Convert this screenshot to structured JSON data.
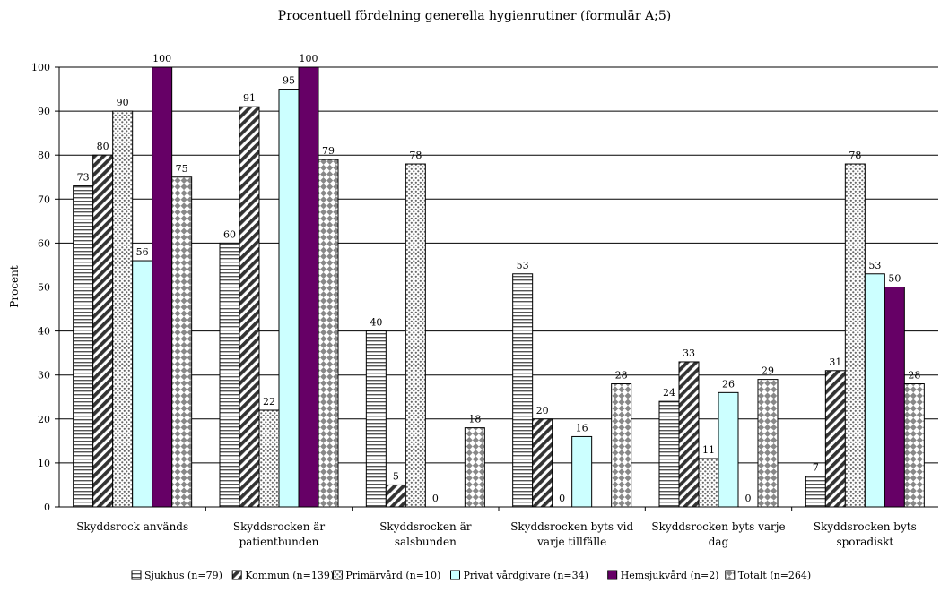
{
  "chart_data": {
    "type": "bar",
    "title": "Procentuell fördelning generella hygienrutiner (formulär A;5)",
    "xlabel": "",
    "ylabel": "Procent",
    "ylim": [
      0,
      100
    ],
    "yticks": [
      0,
      10,
      20,
      30,
      40,
      50,
      60,
      70,
      80,
      90,
      100
    ],
    "grid": true,
    "legend_position": "bottom",
    "categories": [
      [
        "Skyddsrock används"
      ],
      [
        "Skyddsrocken är",
        "patientbunden"
      ],
      [
        "Skyddsrocken är",
        "salsbunden"
      ],
      [
        "Skyddsrocken byts vid",
        "varje tillfälle"
      ],
      [
        "Skyddsrocken byts varje",
        "dag"
      ],
      [
        "Skyddsrocken byts",
        "sporadiskt"
      ]
    ],
    "series": [
      {
        "name": "Sjukhus (n=79)",
        "pattern": "hstripes",
        "color": "#ffffff",
        "values": [
          73,
          60,
          40,
          53,
          24,
          7
        ]
      },
      {
        "name": "Kommun (n=139)",
        "pattern": "diagonal",
        "color": "#ffffff",
        "values": [
          80,
          91,
          5,
          20,
          33,
          31
        ]
      },
      {
        "name": "Primärvård (n=10)",
        "pattern": "dots",
        "color": "#ffffff",
        "values": [
          90,
          22,
          78,
          0,
          11,
          78
        ]
      },
      {
        "name": "Privat vårdgivare (n=34)",
        "pattern": "solid",
        "color": "#ccffff",
        "values": [
          56,
          95,
          0,
          16,
          26,
          53
        ]
      },
      {
        "name": "Hemsjukvård (n=2)",
        "pattern": "solid",
        "color": "#660066",
        "values": [
          100,
          100,
          null,
          null,
          0,
          50
        ]
      },
      {
        "name": "Totalt (n=264)",
        "pattern": "checker",
        "color": "#ffffff",
        "values": [
          75,
          79,
          18,
          28,
          29,
          28
        ]
      }
    ]
  }
}
